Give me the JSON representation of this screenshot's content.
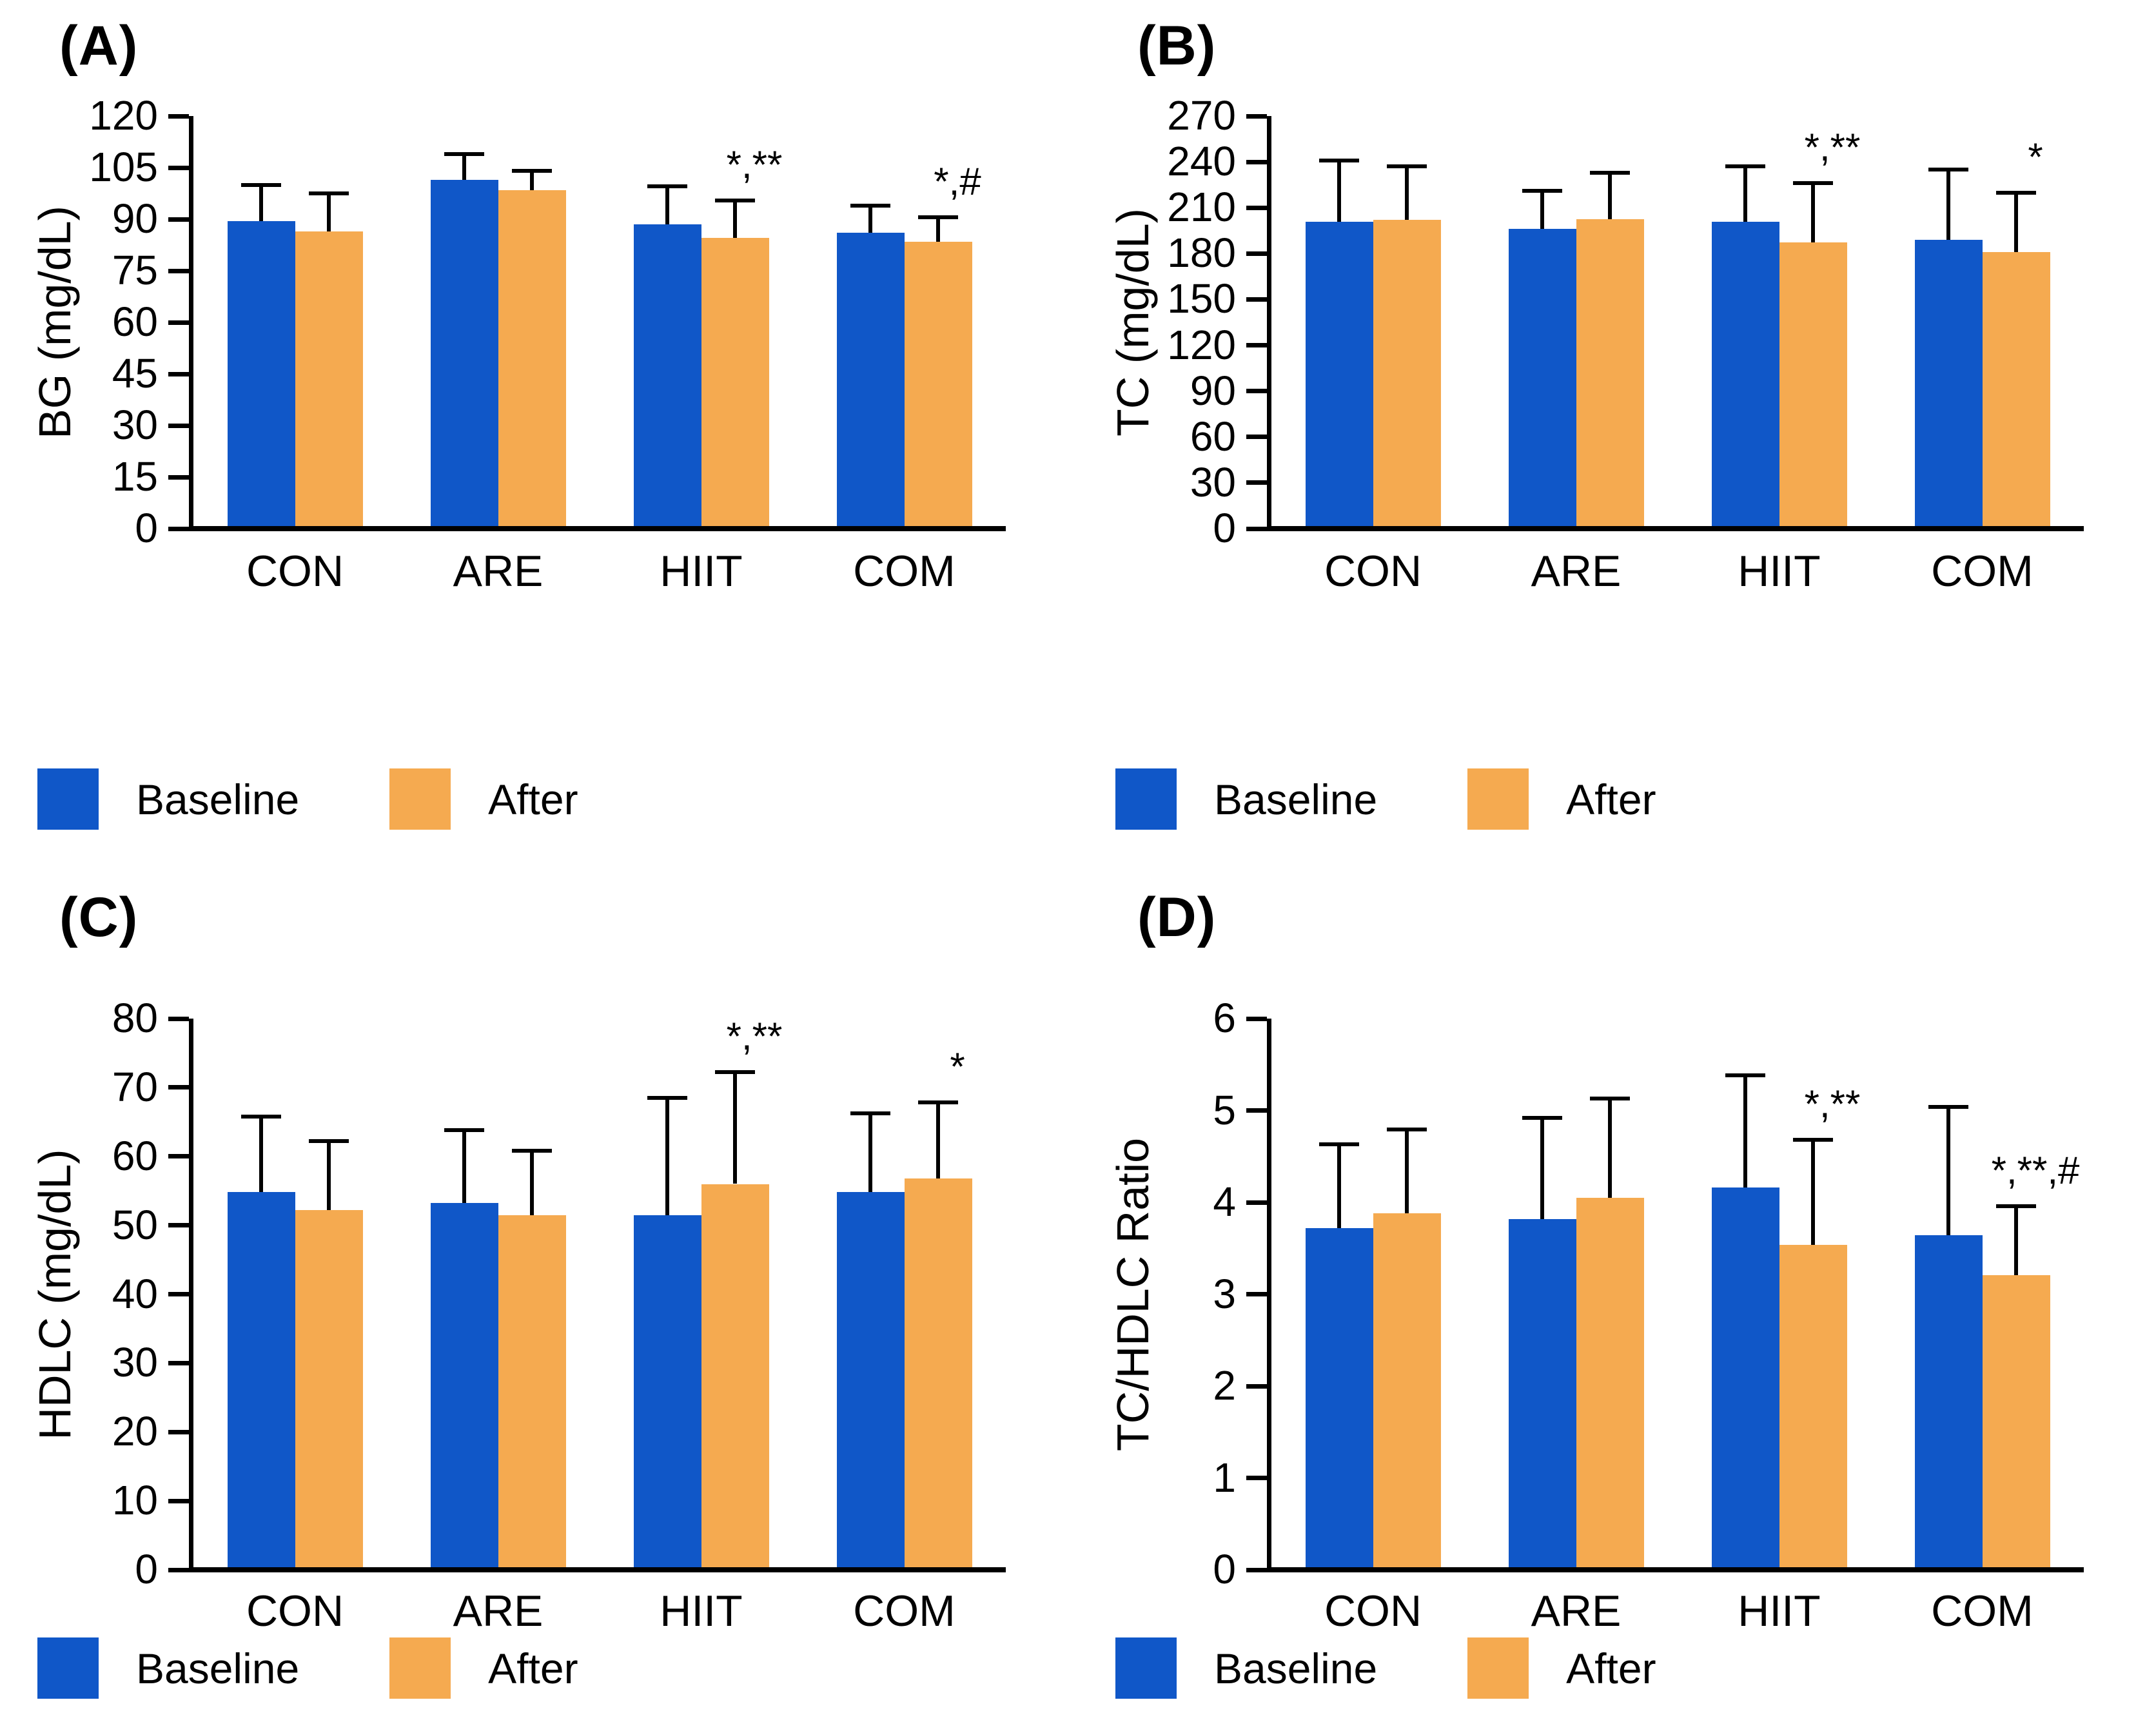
{
  "figure_title": "",
  "legend": {
    "position": "bottom-left",
    "items": [
      {
        "label": "Baseline",
        "color_key": "baseline"
      },
      {
        "label": "After",
        "color_key": "after"
      }
    ]
  },
  "colors": {
    "baseline": "#1057C8",
    "after": "#F5AA50",
    "error_bars": "#000000",
    "axis": "#000000",
    "text": "#000000",
    "background": "#FFFFFF"
  },
  "chart_data": [
    {
      "type": "bar",
      "panel_tag": "(A)",
      "title": "",
      "xlabel": "",
      "ylabel": "BG (mg/dL)",
      "categories": [
        "CON",
        "ARE",
        "HIIT",
        "COM"
      ],
      "ylim": [
        0,
        120
      ],
      "ytick_step": 15,
      "grid": false,
      "legend_position": "bottom-left",
      "series": [
        {
          "name": "Baseline",
          "values": [
            89.5,
            101.5,
            88.5,
            86
          ],
          "error_tops": [
            100,
            109,
            99.5,
            94
          ]
        },
        {
          "name": "After",
          "values": [
            86.5,
            98.5,
            84.5,
            83.5
          ],
          "error_tops": [
            97.5,
            104,
            95.5,
            90.5
          ]
        }
      ],
      "annotations": [
        {
          "category": "HIIT",
          "series": "After",
          "text": "*,**"
        },
        {
          "category": "COM",
          "series": "After",
          "text": "*,#"
        }
      ]
    },
    {
      "type": "bar",
      "panel_tag": "(B)",
      "title": "",
      "xlabel": "",
      "ylabel": "TC (mg/dL)",
      "categories": [
        "CON",
        "ARE",
        "HIIT",
        "COM"
      ],
      "ylim": [
        0,
        270
      ],
      "ytick_step": 30,
      "grid": false,
      "legend_position": "bottom-left",
      "series": [
        {
          "name": "Baseline",
          "values": [
            201,
            196,
            201,
            189
          ],
          "error_tops": [
            241,
            221,
            237,
            235
          ]
        },
        {
          "name": "After",
          "values": [
            202,
            202.5,
            187.5,
            181
          ],
          "error_tops": [
            237,
            233,
            226,
            220
          ]
        }
      ],
      "annotations": [
        {
          "category": "HIIT",
          "series": "After",
          "text": "*,**"
        },
        {
          "category": "COM",
          "series": "After",
          "text": "*"
        }
      ]
    },
    {
      "type": "bar",
      "panel_tag": "(C)",
      "title": "",
      "xlabel": "",
      "ylabel": "HDLC (mg/dL)",
      "categories": [
        "CON",
        "ARE",
        "HIIT",
        "COM"
      ],
      "ylim": [
        0,
        80
      ],
      "ytick_step": 10,
      "grid": false,
      "legend_position": "bottom-left",
      "series": [
        {
          "name": "Baseline",
          "values": [
            54.8,
            53.2,
            51.5,
            54.8
          ],
          "error_tops": [
            65.8,
            63.8,
            68.5,
            66.2
          ]
        },
        {
          "name": "After",
          "values": [
            52.2,
            51.5,
            56,
            56.8
          ],
          "error_tops": [
            62.2,
            60.8,
            72.2,
            67.8
          ]
        }
      ],
      "annotations": [
        {
          "category": "HIIT",
          "series": "After",
          "text": "*,**"
        },
        {
          "category": "COM",
          "series": "After",
          "text": "*"
        }
      ]
    },
    {
      "type": "bar",
      "panel_tag": "(D)",
      "title": "",
      "xlabel": "",
      "ylabel": "TC/HDLC Ratio",
      "categories": [
        "CON",
        "ARE",
        "HIIT",
        "COM"
      ],
      "ylim": [
        0,
        6
      ],
      "ytick_step": 1,
      "grid": false,
      "legend_position": "bottom-left",
      "series": [
        {
          "name": "Baseline",
          "values": [
            3.72,
            3.82,
            4.16,
            3.64
          ],
          "error_tops": [
            4.63,
            4.92,
            5.38,
            5.04
          ]
        },
        {
          "name": "After",
          "values": [
            3.88,
            4.05,
            3.54,
            3.21
          ],
          "error_tops": [
            4.79,
            5.13,
            4.68,
            3.96
          ]
        }
      ],
      "annotations": [
        {
          "category": "HIIT",
          "series": "After",
          "text": "*,**"
        },
        {
          "category": "COM",
          "series": "After",
          "text": "*,**,#"
        }
      ]
    }
  ]
}
